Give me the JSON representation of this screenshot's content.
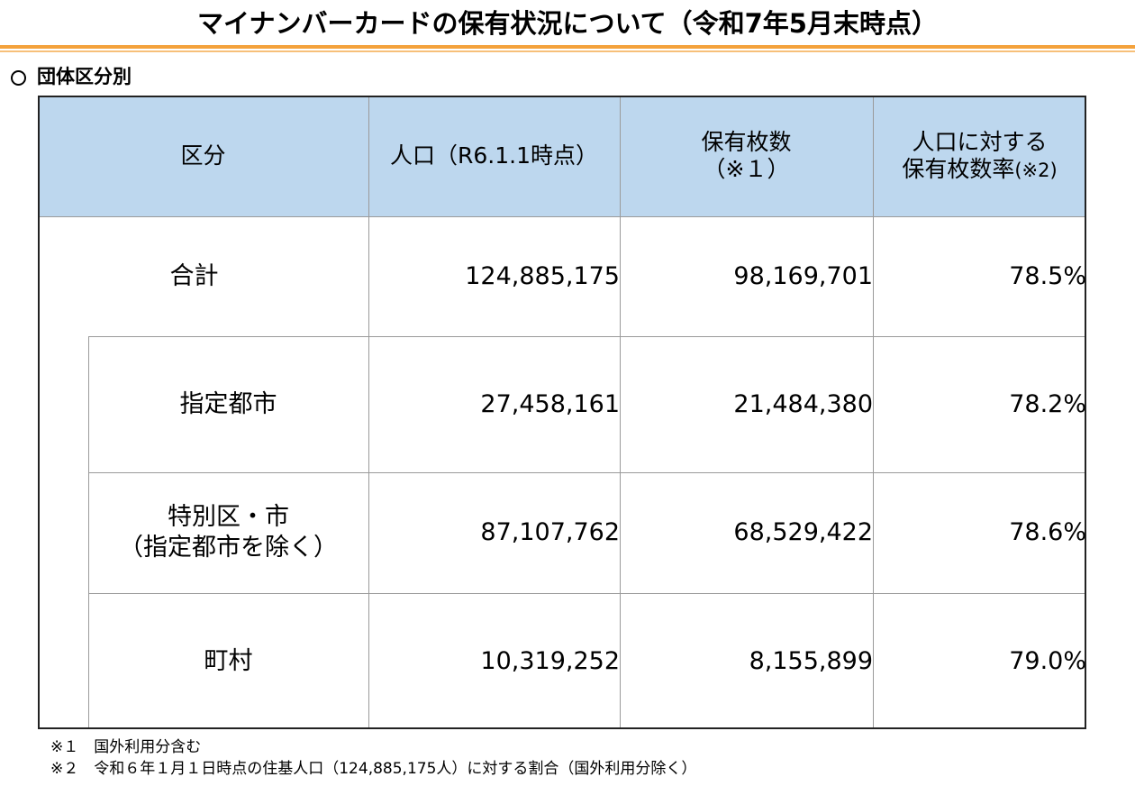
{
  "title": "マイナンバーカードの保有状況について（令和7年5月末時点）",
  "section_heading": "団体区分別",
  "table": {
    "headers": {
      "category": "区分",
      "population": "人口（R6.1.1時点）",
      "cards_line1": "保有枚数",
      "cards_line2": "（※１）",
      "rate_line1": "人口に対する",
      "rate_line2_main": "保有枚数率",
      "rate_line2_note": "(※2)"
    },
    "rows": [
      {
        "label_line1": "合計",
        "label_line2": "",
        "population": "124,885,175",
        "cards": "98,169,701",
        "rate": "78.5%"
      },
      {
        "label_line1": "指定都市",
        "label_line2": "",
        "population": "27,458,161",
        "cards": "21,484,380",
        "rate": "78.2%"
      },
      {
        "label_line1": "特別区・市",
        "label_line2": "（指定都市を除く）",
        "population": "87,107,762",
        "cards": "68,529,422",
        "rate": "78.6%"
      },
      {
        "label_line1": "町村",
        "label_line2": "",
        "population": "10,319,252",
        "cards": "8,155,899",
        "rate": "79.0%"
      }
    ]
  },
  "notes": [
    "※１　国外利用分含む",
    "※２　令和６年１月１日時点の住基人口（124,885,175人）に対する割合（国外利用分除く）"
  ],
  "colors": {
    "header_fill": "#bdd7ee",
    "title_rule": "#f4a23c"
  }
}
